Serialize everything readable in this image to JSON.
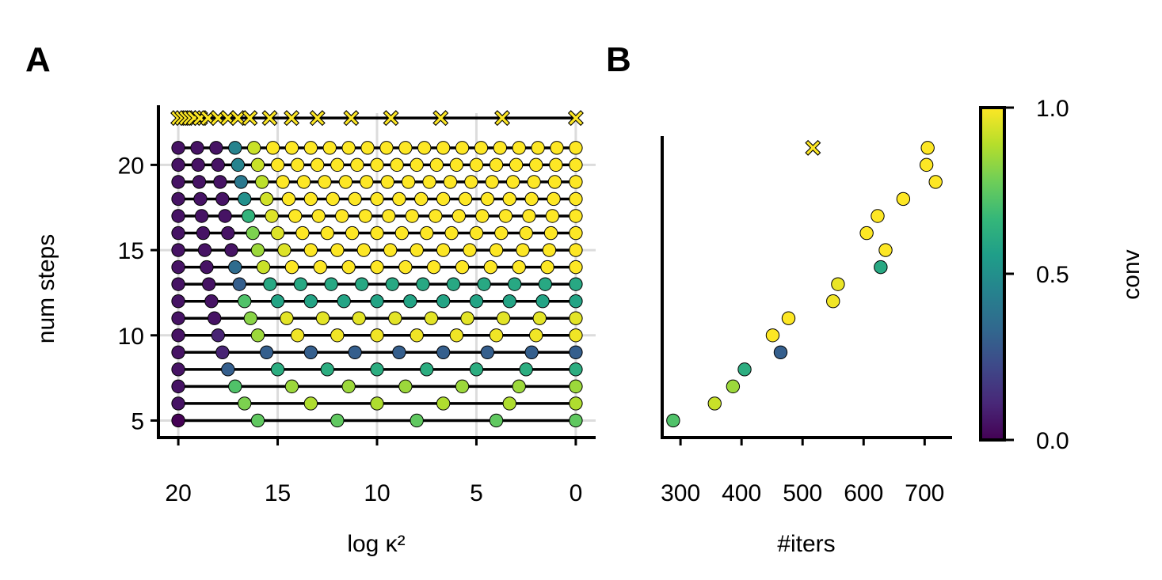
{
  "figure": {
    "panel_a_label": "A",
    "panel_b_label": "B"
  },
  "colormap": {
    "name": "viridis",
    "stops": [
      "#440154",
      "#482878",
      "#3e4989",
      "#31688e",
      "#26828e",
      "#1f9e89",
      "#35b779",
      "#6ece58",
      "#b5de2b",
      "#fde725"
    ],
    "colorbar_label": "conv",
    "ticks": [
      0.0,
      0.5,
      1.0
    ],
    "tick_labels": [
      "0.0",
      "0.5",
      "1.0"
    ],
    "range": [
      0,
      1
    ]
  },
  "chart_data": [
    {
      "panel": "A",
      "type": "scatter",
      "xlabel": "log κ²",
      "ylabel": "num steps",
      "xlim": [
        21,
        -1
      ],
      "ylim": [
        4,
        23.5
      ],
      "x_ticks": [
        20,
        15,
        10,
        5,
        0
      ],
      "x_tick_labels": [
        "20",
        "15",
        "10",
        "5",
        "0"
      ],
      "y_ticks": [
        5,
        10,
        15,
        20
      ],
      "y_tick_labels": [
        "5",
        "10",
        "15",
        "20"
      ],
      "grid": true,
      "note_series": "each row n spans log κ² from 20 to 0 in n equal steps; top row marked with x",
      "rows": [
        {
          "n": 5,
          "conv": [
            0.0,
            0.75,
            0.75,
            0.75,
            0.75,
            0.75
          ]
        },
        {
          "n": 6,
          "conv": [
            0.05,
            0.8,
            0.88,
            0.88,
            0.88,
            0.88,
            0.88
          ]
        },
        {
          "n": 7,
          "conv": [
            0.05,
            0.72,
            0.85,
            0.85,
            0.85,
            0.85,
            0.85,
            0.85
          ]
        },
        {
          "n": 8,
          "conv": [
            0.05,
            0.3,
            0.62,
            0.62,
            0.62,
            0.62,
            0.62,
            0.62,
            0.62
          ]
        },
        {
          "n": 9,
          "conv": [
            0.05,
            0.1,
            0.3,
            0.3,
            0.3,
            0.3,
            0.3,
            0.3,
            0.3,
            0.3
          ]
        },
        {
          "n": 10,
          "conv": [
            0.05,
            0.1,
            0.85,
            0.98,
            0.98,
            0.98,
            0.98,
            0.98,
            0.98,
            0.98,
            0.98
          ]
        },
        {
          "n": 11,
          "conv": [
            0.05,
            0.05,
            0.82,
            0.96,
            0.96,
            0.96,
            0.96,
            0.96,
            0.96,
            0.96,
            0.96,
            0.96
          ]
        },
        {
          "n": 12,
          "conv": [
            0.05,
            0.05,
            0.72,
            0.58,
            0.58,
            0.58,
            0.58,
            0.58,
            0.58,
            0.58,
            0.58,
            0.58,
            0.58
          ]
        },
        {
          "n": 13,
          "conv": [
            0.05,
            0.05,
            0.3,
            0.6,
            0.6,
            0.6,
            0.6,
            0.6,
            0.6,
            0.6,
            0.6,
            0.6,
            0.6,
            0.6
          ]
        },
        {
          "n": 14,
          "conv": [
            0.05,
            0.05,
            0.35,
            0.92,
            1,
            1,
            1,
            1,
            1,
            1,
            1,
            1,
            1,
            1,
            1
          ]
        },
        {
          "n": 15,
          "conv": [
            0.05,
            0.05,
            0.05,
            0.85,
            0.95,
            1,
            1,
            1,
            1,
            1,
            1,
            1,
            1,
            1,
            1,
            1
          ]
        },
        {
          "n": 16,
          "conv": [
            0.05,
            0.05,
            0.05,
            0.8,
            0.95,
            1,
            1,
            1,
            1,
            1,
            1,
            1,
            1,
            1,
            1,
            1,
            1
          ]
        },
        {
          "n": 17,
          "conv": [
            0.05,
            0.05,
            0.05,
            0.65,
            0.95,
            1,
            1,
            1,
            1,
            1,
            1,
            1,
            1,
            1,
            1,
            1,
            1,
            1
          ]
        },
        {
          "n": 18,
          "conv": [
            0.05,
            0.05,
            0.05,
            0.5,
            0.93,
            1,
            1,
            1,
            1,
            1,
            1,
            1,
            1,
            1,
            1,
            1,
            1,
            1,
            1
          ]
        },
        {
          "n": 19,
          "conv": [
            0.05,
            0.05,
            0.05,
            0.4,
            0.9,
            1,
            1,
            1,
            1,
            1,
            1,
            1,
            1,
            1,
            1,
            1,
            1,
            1,
            1,
            1
          ]
        },
        {
          "n": 20,
          "conv": [
            0.05,
            0.05,
            0.05,
            0.45,
            0.92,
            1,
            1,
            1,
            1,
            1,
            1,
            1,
            1,
            1,
            1,
            1,
            1,
            1,
            1,
            1,
            1
          ]
        },
        {
          "n": 21,
          "conv": [
            0.05,
            0.05,
            0.05,
            0.45,
            0.92,
            1,
            1,
            1,
            1,
            1,
            1,
            1,
            1,
            1,
            1,
            1,
            1,
            1,
            1,
            1,
            1,
            1
          ]
        }
      ],
      "top_row": {
        "y": 22.75,
        "marker": "x",
        "conv": 1.0,
        "x": [
          20,
          19.8,
          19.6,
          19.4,
          19.2,
          18.9,
          18.5,
          18.0,
          17.5,
          17.0,
          16.4,
          15.4,
          14.3,
          13.0,
          11.3,
          9.3,
          6.8,
          3.7,
          0
        ]
      }
    },
    {
      "panel": "B",
      "type": "scatter",
      "xlabel": "#iters",
      "xlim": [
        270,
        745
      ],
      "ylim": [
        4,
        23.5
      ],
      "x_ticks": [
        300,
        400,
        500,
        600,
        700
      ],
      "x_tick_labels": [
        "300",
        "400",
        "500",
        "600",
        "700"
      ],
      "points": [
        {
          "x": 288,
          "y": 5,
          "conv": 0.72
        },
        {
          "x": 356,
          "y": 6,
          "conv": 0.92
        },
        {
          "x": 386,
          "y": 7,
          "conv": 0.85
        },
        {
          "x": 405,
          "y": 8,
          "conv": 0.62
        },
        {
          "x": 464,
          "y": 9,
          "conv": 0.3
        },
        {
          "x": 451,
          "y": 10,
          "conv": 1
        },
        {
          "x": 477,
          "y": 11,
          "conv": 1
        },
        {
          "x": 550,
          "y": 12,
          "conv": 0.98
        },
        {
          "x": 558,
          "y": 13,
          "conv": 0.97
        },
        {
          "x": 628,
          "y": 14,
          "conv": 0.6
        },
        {
          "x": 636,
          "y": 15,
          "conv": 1
        },
        {
          "x": 605,
          "y": 16,
          "conv": 1
        },
        {
          "x": 623,
          "y": 17,
          "conv": 1
        },
        {
          "x": 665,
          "y": 18,
          "conv": 1
        },
        {
          "x": 718,
          "y": 19,
          "conv": 1
        },
        {
          "x": 703,
          "y": 20,
          "conv": 1
        },
        {
          "x": 705,
          "y": 21,
          "conv": 1
        }
      ],
      "x_marker": {
        "x": 517,
        "y": 21,
        "conv": 1
      }
    }
  ]
}
